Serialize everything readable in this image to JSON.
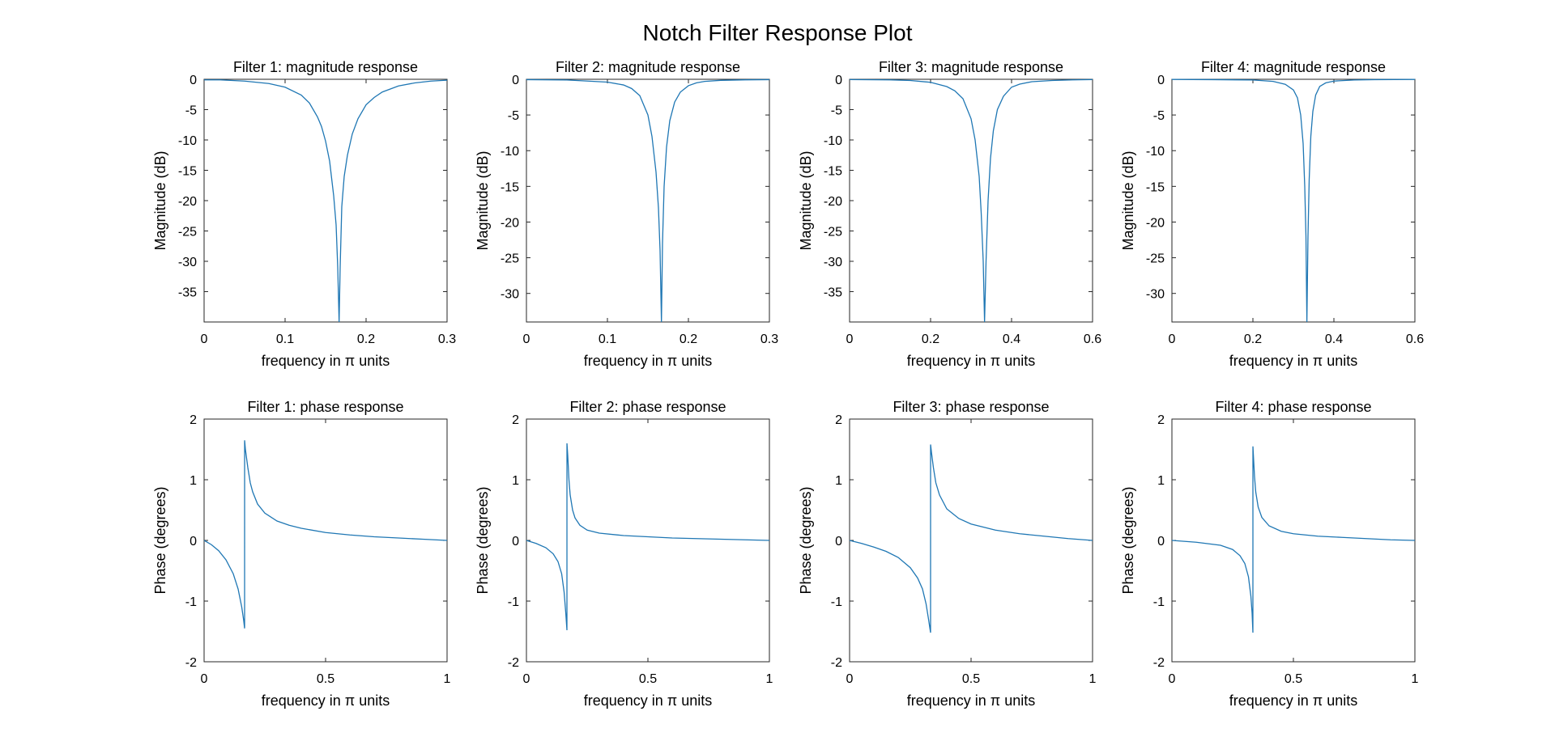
{
  "figure": {
    "title": "Notch Filter Response Plot"
  },
  "style": {
    "line_color": "#1f77b4",
    "axis_color": "#262626",
    "background": "#ffffff"
  },
  "chart_data": [
    {
      "type": "line",
      "title": "Filter 1: magnitude response",
      "xlabel": "frequency in π units",
      "ylabel": "Magnitude (dB)",
      "xlim": [
        0,
        0.3
      ],
      "ylim": [
        -40,
        0
      ],
      "xticks": [
        0,
        0.1,
        0.2,
        0.3
      ],
      "xtick_labels": [
        "0",
        "0.1",
        "0.2",
        "0.3"
      ],
      "yticks": [
        0,
        -5,
        -10,
        -15,
        -20,
        -25,
        -30,
        -35
      ],
      "ytick_labels": [
        "0",
        "-5",
        "-10",
        "-15",
        "-20",
        "-25",
        "-30",
        "-35"
      ],
      "grid": false,
      "series": [
        {
          "x": [
            0,
            0.02,
            0.05,
            0.08,
            0.1,
            0.12,
            0.13,
            0.14,
            0.145,
            0.15,
            0.155,
            0.16,
            0.163,
            0.165,
            0.1667,
            0.168,
            0.17,
            0.173,
            0.177,
            0.183,
            0.19,
            0.2,
            0.21,
            0.22,
            0.24,
            0.26,
            0.28,
            0.3
          ],
          "y": [
            -0.1,
            -0.1,
            -0.3,
            -0.7,
            -1.3,
            -2.6,
            -3.9,
            -6.2,
            -7.8,
            -10.2,
            -13.5,
            -19.2,
            -24,
            -31,
            -40,
            -31,
            -21,
            -16,
            -12.5,
            -9,
            -6.5,
            -4.2,
            -3,
            -2.1,
            -1.1,
            -0.6,
            -0.3,
            -0.15
          ]
        }
      ]
    },
    {
      "type": "line",
      "title": "Filter 2: magnitude response",
      "xlabel": "frequency in π units",
      "ylabel": "Magnitude (dB)",
      "xlim": [
        0,
        0.3
      ],
      "ylim": [
        -34,
        0
      ],
      "xticks": [
        0,
        0.1,
        0.2,
        0.3
      ],
      "xtick_labels": [
        "0",
        "0.1",
        "0.2",
        "0.3"
      ],
      "yticks": [
        0,
        -5,
        -10,
        -15,
        -20,
        -25,
        -30
      ],
      "ytick_labels": [
        "0",
        "-5",
        "-10",
        "-15",
        "-20",
        "-25",
        "-30"
      ],
      "grid": false,
      "series": [
        {
          "x": [
            0,
            0.05,
            0.1,
            0.12,
            0.13,
            0.14,
            0.15,
            0.155,
            0.16,
            0.163,
            0.165,
            0.1667,
            0.168,
            0.17,
            0.173,
            0.177,
            0.183,
            0.19,
            0.2,
            0.21,
            0.22,
            0.24,
            0.27,
            0.3
          ],
          "y": [
            -0.05,
            -0.1,
            -0.4,
            -0.8,
            -1.3,
            -2.3,
            -5,
            -8,
            -13,
            -18,
            -24,
            -34,
            -23,
            -15,
            -9.5,
            -5.8,
            -3.2,
            -1.8,
            -0.9,
            -0.5,
            -0.3,
            -0.15,
            -0.08,
            -0.05
          ]
        }
      ]
    },
    {
      "type": "line",
      "title": "Filter 3: magnitude response",
      "xlabel": "frequency in π units",
      "ylabel": "Magnitude (dB)",
      "xlim": [
        0,
        0.6
      ],
      "ylim": [
        -40,
        0
      ],
      "xticks": [
        0,
        0.2,
        0.4,
        0.6
      ],
      "xtick_labels": [
        "0",
        "0.2",
        "0.4",
        "0.6"
      ],
      "yticks": [
        0,
        -5,
        -10,
        -15,
        -20,
        -25,
        -30,
        -35
      ],
      "ytick_labels": [
        "0",
        "-5",
        "-10",
        "-15",
        "-20",
        "-25",
        "-30",
        "-35"
      ],
      "grid": false,
      "series": [
        {
          "x": [
            0,
            0.1,
            0.15,
            0.2,
            0.24,
            0.26,
            0.28,
            0.3,
            0.31,
            0.32,
            0.325,
            0.33,
            0.3333,
            0.337,
            0.342,
            0.348,
            0.355,
            0.365,
            0.38,
            0.4,
            0.42,
            0.45,
            0.5,
            0.55,
            0.6
          ],
          "y": [
            -0.05,
            -0.1,
            -0.2,
            -0.5,
            -1.2,
            -1.9,
            -3.2,
            -6.5,
            -10,
            -16,
            -22,
            -30,
            -40,
            -30,
            -20,
            -13,
            -8.5,
            -5,
            -2.8,
            -1.3,
            -0.8,
            -0.4,
            -0.2,
            -0.1,
            -0.05
          ]
        }
      ]
    },
    {
      "type": "line",
      "title": "Filter 4: magnitude response",
      "xlabel": "frequency in π units",
      "ylabel": "Magnitude (dB)",
      "xlim": [
        0,
        0.6
      ],
      "ylim": [
        -34,
        0
      ],
      "xticks": [
        0,
        0.2,
        0.4,
        0.6
      ],
      "xtick_labels": [
        "0",
        "0.2",
        "0.4",
        "0.6"
      ],
      "yticks": [
        0,
        -5,
        -10,
        -15,
        -20,
        -25,
        -30
      ],
      "ytick_labels": [
        "0",
        "-5",
        "-10",
        "-15",
        "-20",
        "-25",
        "-30"
      ],
      "grid": false,
      "series": [
        {
          "x": [
            0,
            0.1,
            0.2,
            0.25,
            0.28,
            0.3,
            0.31,
            0.318,
            0.324,
            0.328,
            0.331,
            0.3333,
            0.336,
            0.339,
            0.343,
            0.348,
            0.355,
            0.365,
            0.38,
            0.4,
            0.45,
            0.5,
            0.6
          ],
          "y": [
            -0.02,
            -0.05,
            -0.1,
            -0.3,
            -0.7,
            -1.5,
            -2.6,
            -5,
            -9,
            -15,
            -22,
            -34,
            -22,
            -14,
            -8,
            -4.5,
            -2.2,
            -1,
            -0.5,
            -0.25,
            -0.1,
            -0.05,
            -0.02
          ]
        }
      ]
    },
    {
      "type": "line",
      "title": "Filter 1: phase response",
      "xlabel": "frequency in π units",
      "ylabel": "Phase (degrees)",
      "xlim": [
        0,
        1
      ],
      "ylim": [
        -2,
        2
      ],
      "xticks": [
        0,
        0.5,
        1
      ],
      "xtick_labels": [
        "0",
        "0.5",
        "1"
      ],
      "yticks": [
        2,
        1,
        0,
        -1,
        -2
      ],
      "ytick_labels": [
        "2",
        "1",
        "0",
        "-1",
        "-2"
      ],
      "grid": false,
      "series": [
        {
          "x": [
            0,
            0.03,
            0.06,
            0.09,
            0.12,
            0.14,
            0.155,
            0.163,
            0.1667,
            0.1668,
            0.17,
            0.18,
            0.19,
            0.2,
            0.22,
            0.25,
            0.3,
            0.35,
            0.4,
            0.5,
            0.6,
            0.7,
            0.8,
            0.9,
            1.0
          ],
          "y": [
            0,
            -0.07,
            -0.17,
            -0.32,
            -0.55,
            -0.8,
            -1.1,
            -1.32,
            -1.45,
            1.65,
            1.5,
            1.2,
            0.95,
            0.8,
            0.6,
            0.45,
            0.32,
            0.25,
            0.2,
            0.13,
            0.09,
            0.06,
            0.04,
            0.02,
            0
          ]
        }
      ]
    },
    {
      "type": "line",
      "title": "Filter 2: phase response",
      "xlabel": "frequency in π units",
      "ylabel": "Phase (degrees)",
      "xlim": [
        0,
        1
      ],
      "ylim": [
        -2,
        2
      ],
      "xticks": [
        0,
        0.5,
        1
      ],
      "xtick_labels": [
        "0",
        "0.5",
        "1"
      ],
      "yticks": [
        2,
        1,
        0,
        -1,
        -2
      ],
      "ytick_labels": [
        "2",
        "1",
        "0",
        "-1",
        "-2"
      ],
      "grid": false,
      "series": [
        {
          "x": [
            0,
            0.04,
            0.08,
            0.11,
            0.13,
            0.145,
            0.155,
            0.162,
            0.1667,
            0.1668,
            0.17,
            0.175,
            0.18,
            0.19,
            0.2,
            0.22,
            0.25,
            0.3,
            0.4,
            0.5,
            0.6,
            0.7,
            0.8,
            0.9,
            1.0
          ],
          "y": [
            0,
            -0.05,
            -0.12,
            -0.22,
            -0.35,
            -0.55,
            -0.85,
            -1.2,
            -1.48,
            1.6,
            1.4,
            1.0,
            0.75,
            0.5,
            0.37,
            0.25,
            0.17,
            0.12,
            0.08,
            0.06,
            0.04,
            0.03,
            0.02,
            0.01,
            0
          ]
        }
      ]
    },
    {
      "type": "line",
      "title": "Filter 3: phase response",
      "xlabel": "frequency in π units",
      "ylabel": "Phase (degrees)",
      "xlim": [
        0,
        1
      ],
      "ylim": [
        -2,
        2
      ],
      "xticks": [
        0,
        0.5,
        1
      ],
      "xtick_labels": [
        "0",
        "0.5",
        "1"
      ],
      "yticks": [
        2,
        1,
        0,
        -1,
        -2
      ],
      "ytick_labels": [
        "2",
        "1",
        "0",
        "-1",
        "-2"
      ],
      "grid": false,
      "series": [
        {
          "x": [
            0,
            0.05,
            0.1,
            0.15,
            0.2,
            0.25,
            0.28,
            0.3,
            0.315,
            0.325,
            0.3333,
            0.3334,
            0.337,
            0.345,
            0.355,
            0.37,
            0.4,
            0.45,
            0.5,
            0.6,
            0.7,
            0.8,
            0.9,
            1.0
          ],
          "y": [
            0,
            -0.05,
            -0.11,
            -0.18,
            -0.28,
            -0.45,
            -0.62,
            -0.8,
            -1.05,
            -1.3,
            -1.52,
            1.58,
            1.45,
            1.2,
            0.95,
            0.75,
            0.52,
            0.36,
            0.27,
            0.17,
            0.11,
            0.07,
            0.03,
            0
          ]
        }
      ]
    },
    {
      "type": "line",
      "title": "Filter 4: phase response",
      "xlabel": "frequency in π units",
      "ylabel": "Phase (degrees)",
      "xlim": [
        0,
        1
      ],
      "ylim": [
        -2,
        2
      ],
      "xticks": [
        0,
        0.5,
        1
      ],
      "xtick_labels": [
        "0",
        "0.5",
        "1"
      ],
      "yticks": [
        2,
        1,
        0,
        -1,
        -2
      ],
      "ytick_labels": [
        "2",
        "1",
        "0",
        "-1",
        "-2"
      ],
      "grid": false,
      "series": [
        {
          "x": [
            0,
            0.1,
            0.2,
            0.25,
            0.28,
            0.3,
            0.315,
            0.325,
            0.33,
            0.3333,
            0.3334,
            0.336,
            0.34,
            0.345,
            0.355,
            0.37,
            0.4,
            0.45,
            0.5,
            0.6,
            0.7,
            0.8,
            0.9,
            1.0
          ],
          "y": [
            0,
            -0.03,
            -0.08,
            -0.15,
            -0.25,
            -0.38,
            -0.6,
            -0.92,
            -1.2,
            -1.52,
            1.55,
            1.35,
            1.05,
            0.8,
            0.55,
            0.38,
            0.24,
            0.15,
            0.11,
            0.07,
            0.05,
            0.03,
            0.01,
            0
          ]
        }
      ]
    }
  ]
}
